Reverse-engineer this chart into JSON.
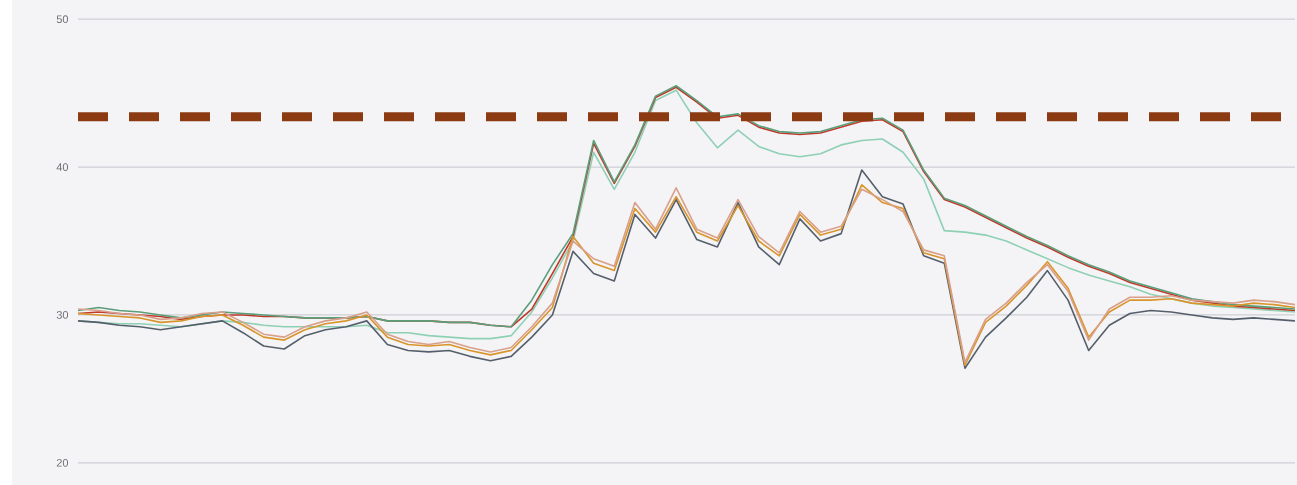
{
  "chart_data": {
    "type": "line",
    "categories": [
      null,
      null,
      null,
      null,
      null,
      null,
      null,
      null,
      null,
      null,
      null,
      null,
      null,
      null,
      null,
      null,
      null,
      null,
      null,
      null,
      null,
      null,
      null,
      null,
      null,
      null,
      null,
      null,
      null,
      null,
      null,
      null,
      null,
      null,
      null,
      null,
      null,
      null,
      null,
      null,
      null,
      null,
      null,
      null,
      null,
      null,
      null,
      null,
      null,
      null,
      null,
      null,
      null,
      null,
      null,
      null,
      null,
      null,
      null,
      null
    ],
    "series": [
      {
        "color": "#8fd0b4",
        "values": [
          29.6,
          29.5,
          29.4,
          29.4,
          29.3,
          29.2,
          29.4,
          29.6,
          29.5,
          29.3,
          29.2,
          29.2,
          29.2,
          29.2,
          29.3,
          28.8,
          28.8,
          28.6,
          28.5,
          28.4,
          28.4,
          28.6,
          30.2,
          32.5,
          35.0,
          41.0,
          38.5,
          41.0,
          44.5,
          45.2,
          43.0,
          41.3,
          42.5,
          41.4,
          40.9,
          40.7,
          40.9,
          41.5,
          41.8,
          41.9,
          41.0,
          39.2,
          35.7,
          35.6,
          35.4,
          35.0,
          34.4,
          33.8,
          33.2,
          32.7,
          32.3,
          31.9,
          31.4,
          31.1,
          30.8,
          30.6,
          30.5,
          30.4,
          30.3,
          30.2
        ]
      },
      {
        "color": "#c0392b",
        "values": [
          30.1,
          30.2,
          30.1,
          30.0,
          29.9,
          29.7,
          29.9,
          30.0,
          30.0,
          29.9,
          29.9,
          29.8,
          29.8,
          29.8,
          29.9,
          29.6,
          29.6,
          29.6,
          29.5,
          29.5,
          29.3,
          29.2,
          30.4,
          32.8,
          35.3,
          41.6,
          38.9,
          41.4,
          44.7,
          45.4,
          44.4,
          43.3,
          43.5,
          42.7,
          42.3,
          42.2,
          42.3,
          42.7,
          43.1,
          43.2,
          42.4,
          39.7,
          37.8,
          37.3,
          36.6,
          35.9,
          35.2,
          34.6,
          33.9,
          33.3,
          32.8,
          32.2,
          31.8,
          31.4,
          31.0,
          30.8,
          30.6,
          30.5,
          30.4,
          30.3
        ]
      },
      {
        "color": "#5a9e7a",
        "values": [
          30.3,
          30.5,
          30.3,
          30.2,
          30.0,
          29.8,
          30.0,
          30.2,
          30.1,
          30.0,
          29.9,
          29.8,
          29.8,
          29.8,
          29.9,
          29.6,
          29.6,
          29.6,
          29.5,
          29.5,
          29.3,
          29.2,
          31.0,
          33.4,
          35.5,
          41.8,
          39.0,
          41.5,
          44.8,
          45.5,
          44.5,
          43.4,
          43.6,
          42.8,
          42.4,
          42.3,
          42.4,
          42.8,
          43.2,
          43.3,
          42.5,
          39.8,
          37.9,
          37.4,
          36.7,
          36.0,
          35.3,
          34.7,
          34.0,
          33.4,
          32.9,
          32.3,
          31.9,
          31.5,
          31.1,
          30.9,
          30.7,
          30.6,
          30.5,
          30.4
        ]
      },
      {
        "color": "#555f6b",
        "values": [
          29.6,
          29.5,
          29.3,
          29.2,
          29.0,
          29.2,
          29.4,
          29.6,
          28.8,
          27.9,
          27.7,
          28.6,
          29.0,
          29.2,
          29.6,
          28.0,
          27.6,
          27.5,
          27.6,
          27.2,
          26.9,
          27.2,
          28.5,
          30.0,
          34.3,
          32.8,
          32.3,
          36.8,
          35.2,
          37.8,
          35.1,
          34.6,
          37.6,
          34.6,
          33.4,
          36.5,
          35.0,
          35.5,
          39.8,
          38.0,
          37.5,
          34.0,
          33.5,
          26.4,
          28.5,
          29.8,
          31.2,
          33.0,
          31.0,
          27.6,
          29.3,
          30.1,
          30.3,
          30.2,
          30.0,
          29.8,
          29.7,
          29.8,
          29.7,
          29.6
        ]
      },
      {
        "color": "#d9952b",
        "values": [
          30.1,
          30.0,
          29.9,
          29.8,
          29.5,
          29.6,
          29.9,
          30.0,
          29.3,
          28.5,
          28.3,
          29.0,
          29.4,
          29.6,
          30.0,
          28.5,
          28.0,
          27.9,
          28.0,
          27.6,
          27.3,
          27.6,
          29.0,
          30.5,
          35.3,
          33.5,
          33.0,
          37.2,
          35.6,
          38.0,
          35.6,
          35.0,
          37.4,
          35.0,
          34.0,
          36.8,
          35.4,
          35.8,
          38.8,
          37.6,
          37.2,
          34.2,
          33.8,
          26.6,
          29.5,
          30.6,
          32.0,
          33.6,
          31.8,
          28.5,
          30.2,
          31.0,
          31.0,
          31.1,
          30.8,
          30.7,
          30.6,
          30.8,
          30.7,
          30.5
        ]
      },
      {
        "color": "#d8a08a",
        "values": [
          30.4,
          30.3,
          30.1,
          30.0,
          29.7,
          29.8,
          30.1,
          30.2,
          29.5,
          28.7,
          28.5,
          29.2,
          29.6,
          29.8,
          30.2,
          28.7,
          28.2,
          28.0,
          28.2,
          27.8,
          27.5,
          27.8,
          29.2,
          30.8,
          35.0,
          33.8,
          33.3,
          37.6,
          35.8,
          38.6,
          35.8,
          35.2,
          37.8,
          35.3,
          34.2,
          37.0,
          35.6,
          36.0,
          38.5,
          37.8,
          37.0,
          34.4,
          34.0,
          26.8,
          29.7,
          30.8,
          32.2,
          33.4,
          31.6,
          28.3,
          30.4,
          31.2,
          31.2,
          31.3,
          31.0,
          30.9,
          30.8,
          31.0,
          30.9,
          30.7
        ]
      }
    ],
    "ylim": [
      18.5,
      51.3
    ],
    "yticks": [
      20,
      30,
      40,
      50
    ],
    "grid": "y",
    "tick_labels": "y",
    "marker": "none",
    "line_style": "solid",
    "ref_lines": [
      {
        "axis": "y",
        "value": 43.4,
        "color": "#8b3a12",
        "line_style": "dashed"
      }
    ]
  }
}
